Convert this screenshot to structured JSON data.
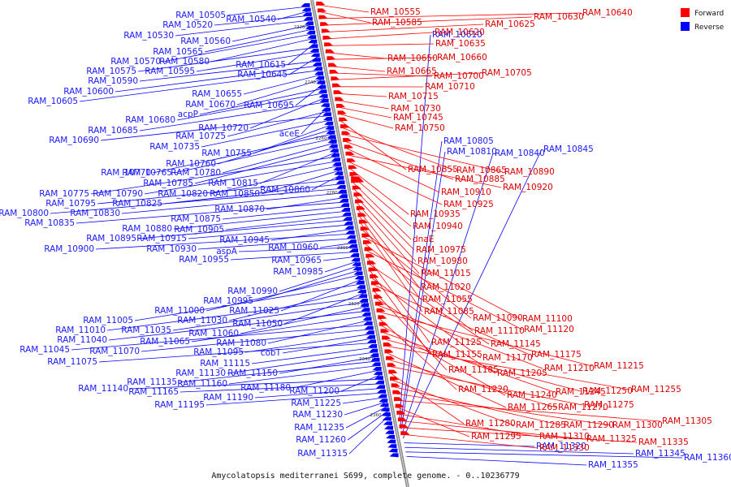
{
  "legend": {
    "forward_label": "Forward",
    "reverse_label": "Reverse",
    "forward_color": "#ff0000",
    "reverse_color": "#0000ff"
  },
  "caption": "Amycolatopsis mediterranei S699, complete genome. - 0..10236779",
  "axis_ticks": [
    "2220 kbp",
    "2240 kbp",
    "2260 kbp",
    "2280 kbp",
    "2300 kbp",
    "2320 kbp",
    "2340 kbp",
    "2360 kbp"
  ],
  "reverse_genes": [
    "RAM_10505",
    "RAM_10540",
    "RAM_10520",
    "RAM_10530",
    "RAM_10560",
    "RAM_10565",
    "RAM_10570",
    "RAM_10580",
    "RAM_10615",
    "RAM_10575",
    "RAM_10595",
    "RAM_10645",
    "RAM_10590",
    "RAM_10600",
    "RAM_10605",
    "RAM_10655",
    "RAM_10670",
    "RAM_10695",
    "acpP",
    "RAM_10680",
    "RAM_10720",
    "RAM_10685",
    "aceE",
    "RAM_10725",
    "RAM_10690",
    "RAM_10735",
    "RAM_10755",
    "RAM_10760",
    "RAM_10770",
    "RAM_10765",
    "RAM_10780",
    "RAM_10785",
    "RAM_10815",
    "RAM_10775",
    "RAM_10790",
    "RAM_10820",
    "RAM_10850",
    "RAM_10860",
    "RAM_10795",
    "RAM_10825",
    "RAM_10800",
    "RAM_10830",
    "RAM_10870",
    "RAM_10835",
    "RAM_10875",
    "RAM_10880",
    "RAM_10905",
    "RAM_10895",
    "RAM_10915",
    "RAM_10945",
    "RAM_10900",
    "RAM_10930",
    "RAM_10960",
    "aspA",
    "RAM_10955",
    "RAM_10965",
    "RAM_10985",
    "RAM_10990",
    "RAM_10995",
    "RAM_11000",
    "RAM_11025",
    "RAM_11005",
    "RAM_11030",
    "RAM_11050",
    "RAM_11010",
    "RAM_11035",
    "RAM_11060",
    "RAM_11040",
    "RAM_11065",
    "RAM_11080",
    "RAM_11045",
    "RAM_11070",
    "RAM_11095",
    "cobT",
    "RAM_11075",
    "RAM_11115",
    "RAM_11130",
    "RAM_11150",
    "RAM_11135",
    "RAM_11160",
    "RAM_11180",
    "RAM_11200",
    "RAM_11140",
    "RAM_11165",
    "RAM_11190",
    "RAM_11195",
    "RAM_11225",
    "RAM_11230",
    "RAM_11235",
    "RAM_11260",
    "RAM_11315",
    "RAM_10610",
    "RAM_10805",
    "RAM_10810",
    "RAM_10840",
    "RAM_10845",
    "RAM_11320",
    "RAM_11345",
    "RAM_11360",
    "RAM_11355"
  ],
  "forward_genes": [
    "RAM_10555",
    "RAM_10585",
    "RAM_10640",
    "RAM_10630",
    "RAM_10625",
    "RAM_10620",
    "RAM_10635",
    "RAM_10650",
    "RAM_10660",
    "RAM_10665",
    "RAM_10700",
    "RAM_10705",
    "RAM_10710",
    "RAM_10715",
    "RAM_10730",
    "RAM_10745",
    "RAM_10750",
    "RAM_10855",
    "RAM_10865",
    "RAM_10890",
    "RAM_10885",
    "RAM_10910",
    "RAM_10920",
    "RAM_10925",
    "RAM_10935",
    "RAM_10940",
    "dnaE",
    "RAM_10975",
    "RAM_10980",
    "RAM_11015",
    "RAM_11020",
    "RAM_11055",
    "RAM_11085",
    "RAM_11090",
    "RAM_11100",
    "RAM_11110",
    "RAM_11120",
    "RAM_11125",
    "RAM_11145",
    "RAM_11155",
    "RAM_11170",
    "RAM_11175",
    "RAM_11185",
    "RAM_11205",
    "RAM_11210",
    "RAM_11215",
    "RAM_11220",
    "RAM_11240",
    "RAM_11245",
    "RAM_11250",
    "RAM_11255",
    "RAM_11265",
    "RAM_11270",
    "RAM_11275",
    "RAM_11280",
    "RAM_11285",
    "RAM_11290",
    "RAM_11300",
    "RAM_11305",
    "RAM_11295",
    "RAM_11310",
    "RAM_11325",
    "RAM_11335",
    "RAM_11330"
  ]
}
